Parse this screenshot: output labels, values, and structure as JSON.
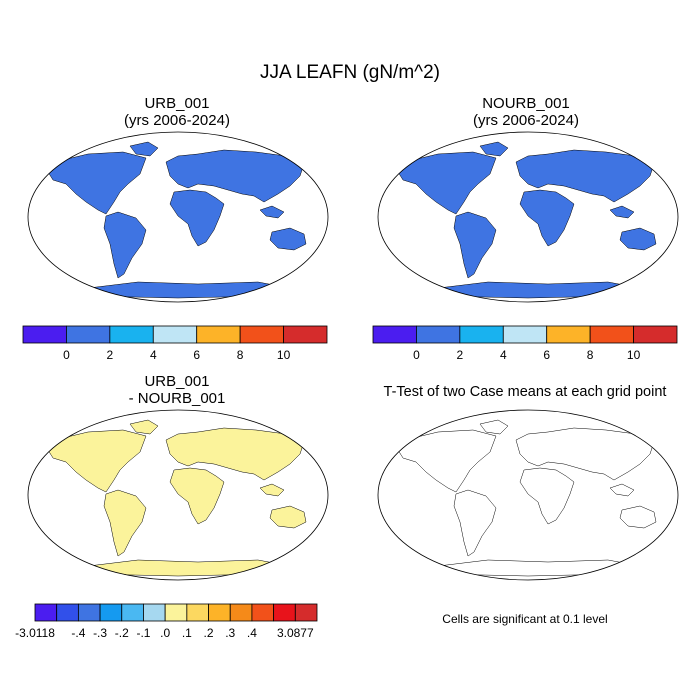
{
  "figure": {
    "title": "JJA LEAFN (gN/m^2)"
  },
  "panels": {
    "top_left": {
      "title_line1": "URB_001",
      "title_line2": "(yrs 2006-2024)"
    },
    "top_right": {
      "title_line1": "NOURB_001",
      "title_line2": "(yrs 2006-2024)"
    },
    "bottom_left": {
      "title_line1": "URB_001",
      "title_line2": "- NOURB_001"
    },
    "bottom_right": {
      "title": "T-Test of two Case means at each grid point",
      "note": "Cells are significant at 0.1 level"
    }
  },
  "colorbars": {
    "absolute": {
      "colors": [
        "#4b1df0",
        "#3f74e2",
        "#19b2ef",
        "#bfe5f5",
        "#fdb328",
        "#f2511a",
        "#d52c2c"
      ],
      "labels": [
        "0",
        "2",
        "4",
        "6",
        "8",
        "10"
      ]
    },
    "difference": {
      "colors": [
        "#4b1df0",
        "#3150ea",
        "#3f74e2",
        "#159af0",
        "#4ab8f2",
        "#a6d8f0",
        "#fbf39b",
        "#fcd860",
        "#fdb328",
        "#f58a19",
        "#f2511a",
        "#e8131b",
        "#d52c2c"
      ],
      "labels": [
        "-3.0118",
        "-.4",
        "-.3",
        "-.2",
        "-.1",
        ".0",
        ".1",
        ".2",
        ".3",
        ".4",
        "3.0877"
      ]
    }
  },
  "map_colors": {
    "ocean": "#ffffff",
    "land_base_abs": "#3f74e2",
    "land_base_diff": "#fbf39b",
    "antarctica_abs": "#3f74e2",
    "antarctica_diff": "#fbf39b",
    "significant": "#e8131b"
  }
}
